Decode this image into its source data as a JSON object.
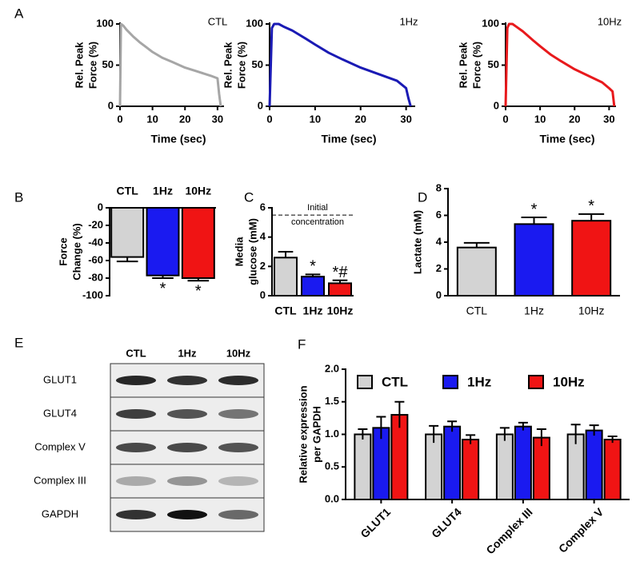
{
  "panel_labels": [
    "A",
    "B",
    "C",
    "D",
    "E",
    "F"
  ],
  "chart_data": [
    {
      "type": "line",
      "annotation": "CTL",
      "ylabel": [
        "Rel. Peak",
        "Force (%)"
      ],
      "xlabel": "Time  (sec)",
      "color": "#a6a6a6",
      "x": [
        0,
        0.3,
        1,
        2,
        4,
        6,
        8,
        10,
        13,
        16,
        20,
        24,
        28,
        30,
        30.5,
        31
      ],
      "values": [
        0,
        100,
        98,
        93,
        85,
        78,
        72,
        66,
        59,
        54,
        47,
        42,
        37,
        34,
        15,
        0
      ],
      "xlim": [
        0,
        32
      ],
      "xticks": [
        0,
        10,
        20,
        30
      ],
      "ylim": [
        0,
        100
      ],
      "yticks": [
        0,
        50,
        100
      ]
    },
    {
      "type": "line",
      "annotation": "1Hz",
      "ylabel": [
        "Rel. Peak",
        "Force (%)"
      ],
      "xlabel": "Time  (sec)",
      "color": "#1a1ab4",
      "x": [
        0,
        0.5,
        1,
        2,
        3,
        5,
        8,
        10,
        13,
        16,
        20,
        24,
        28,
        30,
        30.5,
        31
      ],
      "values": [
        0,
        95,
        100,
        100,
        97,
        92,
        82,
        75,
        65,
        57,
        47,
        39,
        31,
        22,
        10,
        0
      ],
      "xlim": [
        0,
        32
      ],
      "xticks": [
        0,
        10,
        20,
        30
      ],
      "ylim": [
        0,
        100
      ],
      "yticks": [
        0,
        50,
        100
      ]
    },
    {
      "type": "line",
      "annotation": "10Hz",
      "ylabel": [
        "Rel. Peak",
        "Force (%)"
      ],
      "xlabel": "Time  (sec)",
      "color": "#e8191c",
      "x": [
        0,
        0.5,
        1,
        2,
        3,
        5,
        8,
        10,
        13,
        16,
        20,
        24,
        28,
        30,
        31,
        31.5
      ],
      "values": [
        0,
        95,
        100,
        100,
        97,
        91,
        80,
        73,
        63,
        55,
        45,
        37,
        29,
        22,
        18,
        0
      ],
      "xlim": [
        0,
        32
      ],
      "xticks": [
        0,
        10,
        20,
        30
      ],
      "ylim": [
        0,
        100
      ],
      "yticks": [
        0,
        50,
        100
      ]
    },
    {
      "type": "bar",
      "ylabel": [
        "Force",
        "Change (%)"
      ],
      "categories": [
        "CTL",
        "1Hz",
        "10Hz"
      ],
      "colors": [
        "#d3d3d3",
        "#1a1af0",
        "#f01414"
      ],
      "values": [
        -56,
        -77,
        -80
      ],
      "errors": [
        5,
        3,
        3
      ],
      "annotations": [
        null,
        "*",
        "*"
      ],
      "ylim": [
        -100,
        0
      ],
      "yticks": [
        0,
        -20,
        -40,
        -60,
        -80,
        -100
      ]
    },
    {
      "type": "bar",
      "ylabel": [
        "Media",
        "glucose (mM)"
      ],
      "categories": [
        "CTL",
        "1Hz",
        "10Hz"
      ],
      "colors": [
        "#d3d3d3",
        "#1a1af0",
        "#f01414"
      ],
      "values": [
        2.6,
        1.3,
        0.85
      ],
      "errors": [
        0.4,
        0.15,
        0.2
      ],
      "annotations": [
        null,
        "*",
        "*#"
      ],
      "reference": {
        "value": 5.5,
        "label": [
          "Initial",
          "concentration"
        ]
      },
      "ylim": [
        0,
        6
      ],
      "yticks": [
        0,
        2,
        4,
        6
      ]
    },
    {
      "type": "bar",
      "ylabel": "Lactate  (mM)",
      "categories": [
        "CTL",
        "1Hz",
        "10Hz"
      ],
      "colors": [
        "#d3d3d3",
        "#1a1af0",
        "#f01414"
      ],
      "values": [
        3.6,
        5.35,
        5.6
      ],
      "errors": [
        0.35,
        0.5,
        0.5
      ],
      "annotations": [
        null,
        "*",
        "*"
      ],
      "ylim": [
        0,
        8
      ],
      "yticks": [
        0,
        2,
        4,
        6,
        8
      ]
    },
    {
      "type": "grouped-bar",
      "ylabel": [
        "Relative expression",
        "per GAPDH"
      ],
      "categories": [
        "GLUT1",
        "GLUT4",
        "Complex III",
        "Complex V"
      ],
      "series": [
        {
          "name": "CTL",
          "color": "#d3d3d3",
          "values": [
            1.0,
            1.0,
            1.0,
            1.0
          ],
          "errors": [
            0.08,
            0.13,
            0.1,
            0.15
          ]
        },
        {
          "name": "1Hz",
          "color": "#1a1af0",
          "values": [
            1.1,
            1.12,
            1.12,
            1.06
          ],
          "errors": [
            0.17,
            0.08,
            0.06,
            0.08
          ]
        },
        {
          "name": "10Hz",
          "color": "#f01414",
          "values": [
            1.3,
            0.92,
            0.95,
            0.92
          ],
          "errors": [
            0.2,
            0.07,
            0.13,
            0.05
          ]
        }
      ],
      "ylim": [
        0,
        2
      ],
      "yticks": [
        {
          "value": 0,
          "label": "0.0"
        },
        {
          "value": 0.5,
          "label": "0.5"
        },
        {
          "value": 1,
          "label": "1.0"
        },
        {
          "value": 1.5,
          "label": "1.5"
        },
        {
          "value": 2,
          "label": "2.0"
        }
      ]
    }
  ],
  "blot": {
    "lanes": [
      "CTL",
      "1Hz",
      "10Hz"
    ],
    "rows": [
      "GLUT1",
      "GLUT4",
      "Complex V",
      "Complex III",
      "GAPDH"
    ]
  }
}
